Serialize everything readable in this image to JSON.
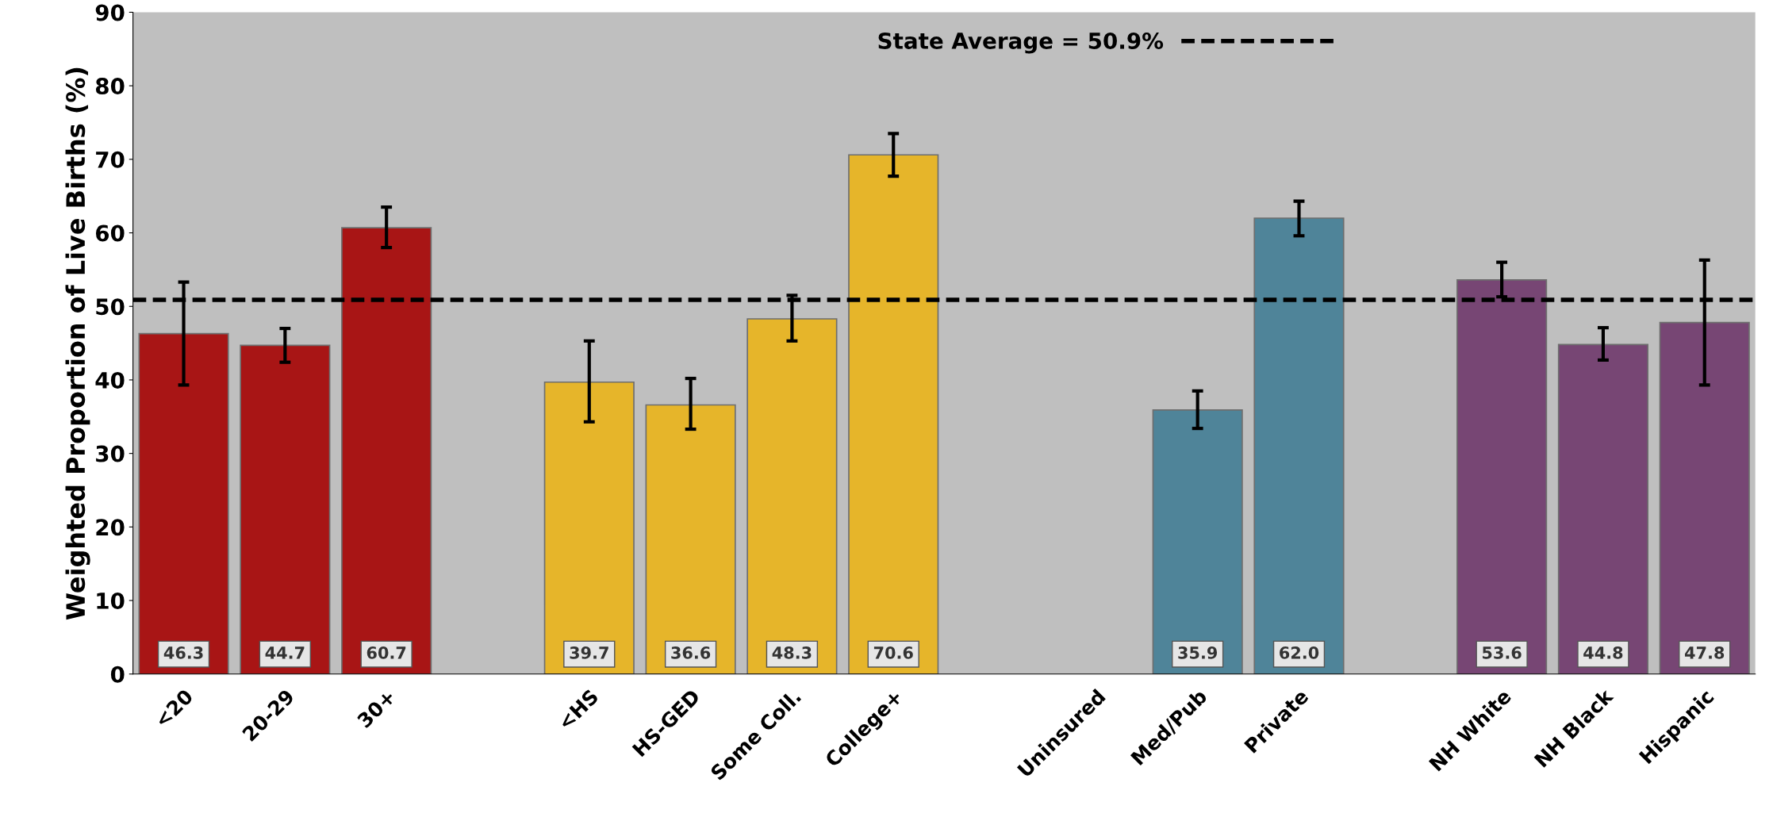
{
  "chart_data": {
    "type": "bar",
    "ylabel": "Weighted Proportion of Live Births (%)",
    "categories": [
      "<20",
      "20-29",
      "30+",
      null,
      "<HS",
      "HS-GED",
      "Some Coll.",
      "College+",
      null,
      "Uninsured",
      "Med/Pub",
      "Private",
      null,
      "NH White",
      "NH Black",
      "Hispanic"
    ],
    "values": [
      46.3,
      44.7,
      60.7,
      null,
      39.7,
      36.6,
      48.3,
      70.6,
      null,
      null,
      35.9,
      62.0,
      null,
      53.6,
      44.8,
      47.8
    ],
    "colors": [
      "#a81515",
      "#a81515",
      "#a81515",
      null,
      "#e6b52a",
      "#e6b52a",
      "#e6b52a",
      "#e6b52a",
      null,
      "#4f8499",
      "#4f8499",
      "#4f8499",
      null,
      "#774674",
      "#774674",
      "#774674"
    ],
    "errors": [
      [
        39.3,
        53.3
      ],
      [
        42.4,
        47.0
      ],
      [
        58.0,
        63.5
      ],
      null,
      [
        34.3,
        45.3
      ],
      [
        33.3,
        40.2
      ],
      [
        45.3,
        51.5
      ],
      [
        67.7,
        73.5
      ],
      null,
      null,
      [
        33.4,
        38.5
      ],
      [
        59.6,
        64.3
      ],
      null,
      [
        51.3,
        56.0
      ],
      [
        42.7,
        47.1
      ],
      [
        39.3,
        56.3
      ]
    ],
    "value_labels": [
      "46.3",
      "44.7",
      "60.7",
      null,
      "39.7",
      "36.6",
      "48.3",
      "70.6",
      null,
      null,
      "35.9",
      "62.0",
      null,
      "53.6",
      "44.8",
      "47.8"
    ],
    "ylim": [
      0,
      90
    ],
    "yticks": [
      0,
      10,
      20,
      30,
      40,
      50,
      60,
      70,
      80,
      90
    ],
    "ref_lines": [
      {
        "axis": "y",
        "value": 50.9,
        "label": "State Average = 50.9%",
        "color": "#000000",
        "line_style": "dashed"
      }
    ],
    "grid": false
  }
}
